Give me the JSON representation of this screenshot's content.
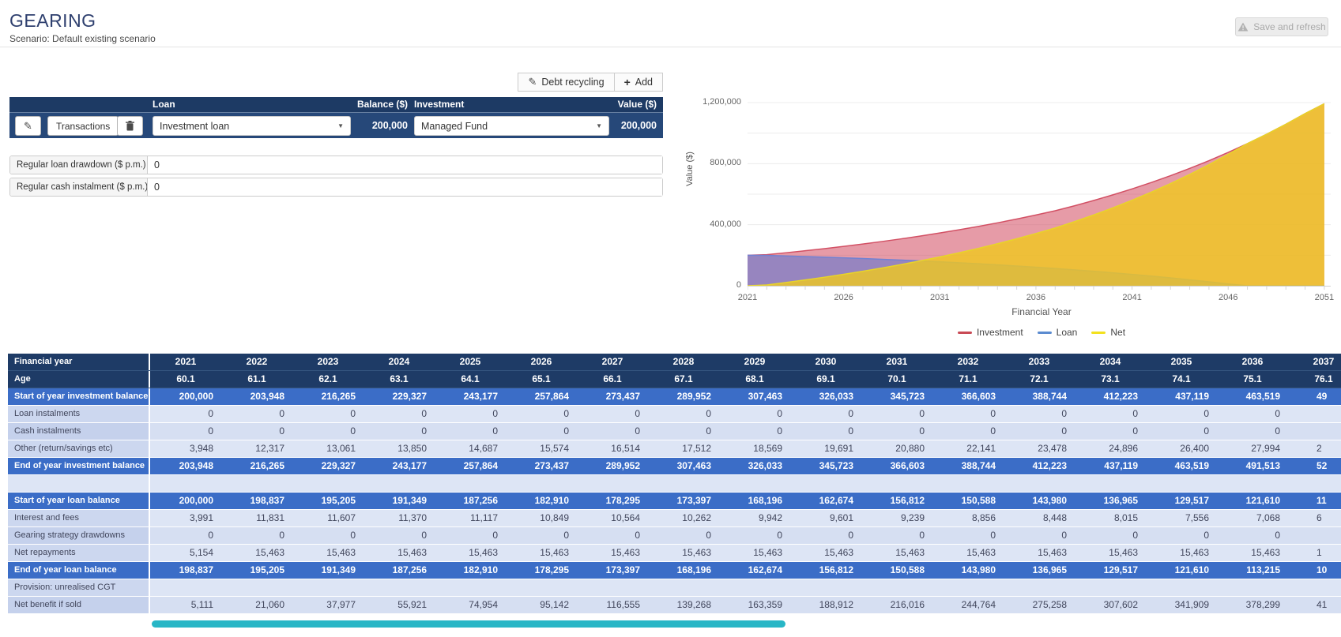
{
  "header": {
    "title": "GEARING",
    "subtitle": "Scenario: Default existing scenario",
    "save_button": "Save and refresh"
  },
  "toolbar": {
    "debt_recycling": "Debt recycling",
    "add": "Add"
  },
  "loan_editor": {
    "columns": {
      "loan": "Loan",
      "balance": "Balance ($)",
      "investment": "Investment",
      "value": "Value ($)"
    },
    "row": {
      "transactions_label": "Transactions",
      "loan_selected": "Investment loan",
      "balance": "200,000",
      "investment_selected": "Managed Fund",
      "value": "200,000"
    },
    "inputs": [
      {
        "label": "Regular loan drawdown ($ p.m.)",
        "value": "0"
      },
      {
        "label": "Regular cash instalment ($ p.m.)",
        "value": "0"
      }
    ]
  },
  "chart_data": {
    "type": "area",
    "title": "",
    "xlabel": "Financial Year",
    "ylabel": "Value ($)",
    "ylim": [
      0,
      1200000
    ],
    "grid": true,
    "legend_position": "bottom",
    "x": [
      2021,
      2022,
      2023,
      2024,
      2025,
      2026,
      2027,
      2028,
      2029,
      2030,
      2031,
      2032,
      2033,
      2034,
      2035,
      2036,
      2037,
      2038,
      2039,
      2040,
      2041,
      2042,
      2043,
      2044,
      2045,
      2046,
      2047,
      2048,
      2049,
      2050,
      2051
    ],
    "xticks": [
      2021,
      2026,
      2031,
      2036,
      2041,
      2046,
      2051
    ],
    "yticks": [
      {
        "v": 0,
        "label": "0"
      },
      {
        "v": 400000,
        "label": "400,000"
      },
      {
        "v": 800000,
        "label": "800,000"
      },
      {
        "v": 1200000,
        "label": "1,200,000"
      }
    ],
    "series": [
      {
        "name": "Investment",
        "color": "#d25064",
        "fill": "#d1495e",
        "fill_opacity": 0.55,
        "values": [
          200000,
          203948,
          216265,
          229327,
          243177,
          257864,
          273437,
          289952,
          307463,
          326033,
          345723,
          366603,
          388744,
          412223,
          437119,
          463519,
          491513,
          523900,
          558500,
          595400,
          634700,
          676600,
          721300,
          768900,
          819600,
          873700,
          931400,
          992900,
          1058400,
          1128300,
          1192800
        ]
      },
      {
        "name": "Loan",
        "color": "#7282d2",
        "fill": "#6276cf",
        "fill_opacity": 0.6,
        "values": [
          200000,
          198837,
          195205,
          191349,
          187256,
          182910,
          178295,
          173397,
          168196,
          162674,
          156812,
          150588,
          143980,
          136965,
          129517,
          121610,
          113215,
          104329,
          94926,
          84977,
          74450,
          63312,
          51527,
          39057,
          25863,
          11902,
          0,
          0,
          0,
          0,
          0
        ]
      },
      {
        "name": "Net",
        "color": "#e8d429",
        "fill": "#f0c81e",
        "fill_opacity": 0.8,
        "values": [
          0,
          5111,
          21060,
          37977,
          55921,
          74954,
          95142,
          116555,
          139268,
          163359,
          188912,
          216016,
          244764,
          275258,
          307602,
          341909,
          378298,
          419571,
          463574,
          510423,
          560250,
          613288,
          669773,
          729843,
          793737,
          861798,
          931400,
          992900,
          1058400,
          1128300,
          1192800
        ]
      }
    ],
    "legend": [
      {
        "label": "Investment",
        "color": "#c94a55"
      },
      {
        "label": "Loan",
        "color": "#5b8bd0"
      },
      {
        "label": "Net",
        "color": "#f3e11e"
      }
    ]
  },
  "table": {
    "rows": [
      {
        "label": "Financial year",
        "type": "header",
        "values": [
          "2021",
          "2022",
          "2023",
          "2024",
          "2025",
          "2026",
          "2027",
          "2028",
          "2029",
          "2030",
          "2031",
          "2032",
          "2033",
          "2034",
          "2035",
          "2036",
          "2037"
        ]
      },
      {
        "label": "Age",
        "type": "header",
        "values": [
          "60.1",
          "61.1",
          "62.1",
          "63.1",
          "64.1",
          "65.1",
          "66.1",
          "67.1",
          "68.1",
          "69.1",
          "70.1",
          "71.1",
          "72.1",
          "73.1",
          "74.1",
          "75.1",
          "76.1"
        ]
      },
      {
        "label": "Start of year investment balance",
        "type": "summary",
        "values": [
          "200,000",
          "203,948",
          "216,265",
          "229,327",
          "243,177",
          "257,864",
          "273,437",
          "289,952",
          "307,463",
          "326,033",
          "345,723",
          "366,603",
          "388,744",
          "412,223",
          "437,119",
          "463,519",
          "49"
        ]
      },
      {
        "label": "Loan instalments",
        "type": "data-a",
        "values": [
          "0",
          "0",
          "0",
          "0",
          "0",
          "0",
          "0",
          "0",
          "0",
          "0",
          "0",
          "0",
          "0",
          "0",
          "0",
          "0",
          ""
        ]
      },
      {
        "label": "Cash instalments",
        "type": "data-b",
        "values": [
          "0",
          "0",
          "0",
          "0",
          "0",
          "0",
          "0",
          "0",
          "0",
          "0",
          "0",
          "0",
          "0",
          "0",
          "0",
          "0",
          ""
        ]
      },
      {
        "label": "Other (return/savings etc)",
        "type": "data-a",
        "values": [
          "3,948",
          "12,317",
          "13,061",
          "13,850",
          "14,687",
          "15,574",
          "16,514",
          "17,512",
          "18,569",
          "19,691",
          "20,880",
          "22,141",
          "23,478",
          "24,896",
          "26,400",
          "27,994",
          "2"
        ]
      },
      {
        "label": "End of year investment balance",
        "type": "summary",
        "values": [
          "203,948",
          "216,265",
          "229,327",
          "243,177",
          "257,864",
          "273,437",
          "289,952",
          "307,463",
          "326,033",
          "345,723",
          "366,603",
          "388,744",
          "412,223",
          "437,119",
          "463,519",
          "491,513",
          "52"
        ]
      },
      {
        "label": "",
        "type": "spacer",
        "values": [
          "",
          "",
          "",
          "",
          "",
          "",
          "",
          "",
          "",
          "",
          "",
          "",
          "",
          "",
          "",
          "",
          ""
        ]
      },
      {
        "label": "Start of year loan balance",
        "type": "summary",
        "values": [
          "200,000",
          "198,837",
          "195,205",
          "191,349",
          "187,256",
          "182,910",
          "178,295",
          "173,397",
          "168,196",
          "162,674",
          "156,812",
          "150,588",
          "143,980",
          "136,965",
          "129,517",
          "121,610",
          "11"
        ]
      },
      {
        "label": "Interest and fees",
        "type": "data-a",
        "values": [
          "3,991",
          "11,831",
          "11,607",
          "11,370",
          "11,117",
          "10,849",
          "10,564",
          "10,262",
          "9,942",
          "9,601",
          "9,239",
          "8,856",
          "8,448",
          "8,015",
          "7,556",
          "7,068",
          "6"
        ]
      },
      {
        "label": "Gearing strategy drawdowns",
        "type": "data-b",
        "values": [
          "0",
          "0",
          "0",
          "0",
          "0",
          "0",
          "0",
          "0",
          "0",
          "0",
          "0",
          "0",
          "0",
          "0",
          "0",
          "0",
          ""
        ]
      },
      {
        "label": "Net repayments",
        "type": "data-a",
        "values": [
          "5,154",
          "15,463",
          "15,463",
          "15,463",
          "15,463",
          "15,463",
          "15,463",
          "15,463",
          "15,463",
          "15,463",
          "15,463",
          "15,463",
          "15,463",
          "15,463",
          "15,463",
          "15,463",
          "1"
        ]
      },
      {
        "label": "End of year loan balance",
        "type": "summary",
        "values": [
          "198,837",
          "195,205",
          "191,349",
          "187,256",
          "182,910",
          "178,295",
          "173,397",
          "168,196",
          "162,674",
          "156,812",
          "150,588",
          "143,980",
          "136,965",
          "129,517",
          "121,610",
          "113,215",
          "10"
        ]
      },
      {
        "label": "Provision: unrealised CGT",
        "type": "data-a",
        "values": [
          "",
          "",
          "",
          "",
          "",
          "",
          "",
          "",
          "",
          "",
          "",
          "",
          "",
          "",
          "",
          "",
          ""
        ]
      },
      {
        "label": "Net benefit if sold",
        "type": "data-b",
        "values": [
          "5,111",
          "21,060",
          "37,977",
          "55,921",
          "74,954",
          "95,142",
          "116,555",
          "139,268",
          "163,359",
          "188,912",
          "216,016",
          "244,764",
          "275,258",
          "307,602",
          "341,909",
          "378,299",
          "41"
        ]
      }
    ]
  }
}
